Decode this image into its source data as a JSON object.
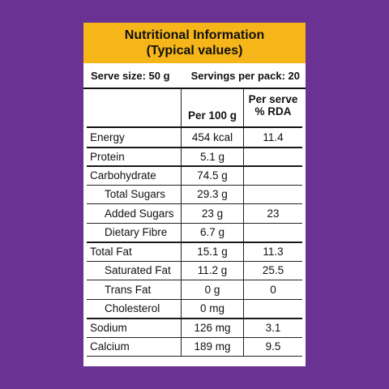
{
  "header": {
    "title": [
      "Nutritional Information",
      "(Typical values)"
    ]
  },
  "serving": {
    "serve_size": "Serve size: 50 g",
    "servings_per_pack": "Servings per pack: 20"
  },
  "table": {
    "columns": [
      "Per 100 g",
      [
        "Per serve",
        "% RDA"
      ]
    ],
    "rows": [
      [
        "Energy",
        "454 kcal",
        "11.4"
      ],
      [
        "Protein",
        "5.1 g",
        null
      ],
      [
        "Carbohydrate",
        "74.5 g",
        null
      ],
      [
        "Total Sugars",
        "29.3 g",
        null
      ],
      [
        "Added Sugars",
        "23 g",
        "23"
      ],
      [
        "Dietary Fibre",
        "6.7 g",
        null
      ],
      [
        "Total Fat",
        "15.1 g",
        "11.3"
      ],
      [
        "Saturated Fat",
        "11.2 g",
        "25.5"
      ],
      [
        "Trans Fat",
        "0 g",
        "0"
      ],
      [
        "Cholesterol",
        "0 mg",
        null
      ],
      [
        "Sodium",
        "126 mg",
        "3.1"
      ],
      [
        "Calcium",
        "189 mg",
        "9.5"
      ]
    ]
  }
}
